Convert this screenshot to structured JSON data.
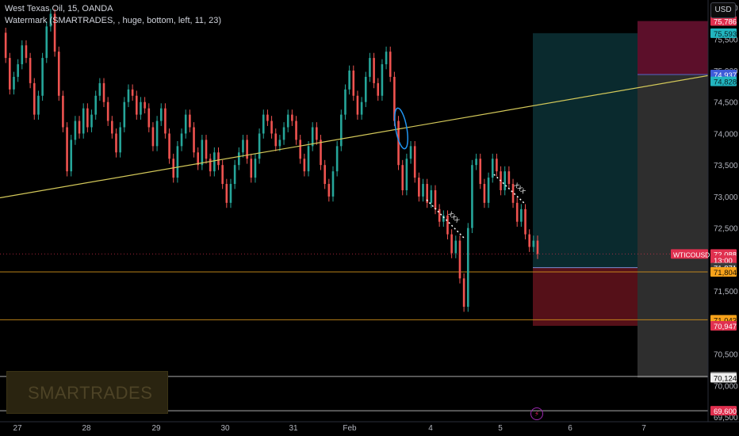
{
  "legend": {
    "symbol_line": "West Texas Oil, 15, OANDA",
    "indicator_line": "Watermark (SMARTRADES, , huge, bottom, left, 11, 23)"
  },
  "watermark": {
    "text": "SMARTRADES"
  },
  "currency_button": "USD",
  "chart_data": {
    "type": "line",
    "title": "West Texas Oil, 15, OANDA",
    "x_tick_labels": [
      "27",
      "28",
      "29",
      "30",
      "31",
      "Feb",
      "4",
      "5",
      "6",
      "7"
    ],
    "y_ticks": [
      {
        "label": "76,000",
        "value": 76.0
      },
      {
        "label": "75,500",
        "value": 75.5
      },
      {
        "label": "75,000",
        "value": 75.0
      },
      {
        "label": "74,500",
        "value": 74.5
      },
      {
        "label": "74,000",
        "value": 74.0
      },
      {
        "label": "73,500",
        "value": 73.5
      },
      {
        "label": "73,000",
        "value": 73.0
      },
      {
        "label": "72,500",
        "value": 72.5
      },
      {
        "label": "71,500",
        "value": 71.5
      },
      {
        "label": "70,500",
        "value": 70.5
      },
      {
        "label": "70,000",
        "value": 70.0
      },
      {
        "label": "69,500",
        "value": 69.5
      }
    ],
    "ylim": [
      69.45,
      76.12
    ],
    "series": [
      {
        "values": [
          75.6,
          75.2,
          74.7,
          74.9,
          75.1,
          75.4,
          75.2,
          74.8,
          74.3,
          74.6,
          75.2,
          75.7,
          75.9,
          75.3,
          74.6,
          74.1,
          73.4,
          73.9,
          74.2,
          74.0,
          74.4,
          74.1,
          74.3,
          74.6,
          74.8,
          74.5,
          74.2,
          74.0,
          73.7,
          74.1,
          74.5,
          74.7,
          74.6,
          74.3,
          74.5,
          74.4,
          74.1,
          73.8,
          74.2,
          74.4,
          74.0,
          73.6,
          73.3,
          73.8,
          74.0,
          74.3,
          74.1,
          73.7,
          73.5,
          73.9,
          73.6,
          73.4,
          73.7,
          73.5,
          73.2,
          72.9,
          73.2,
          73.5,
          73.7,
          73.9,
          73.6,
          73.3,
          73.6,
          74.0,
          74.3,
          74.2,
          74.0,
          73.8,
          73.9,
          74.1,
          74.3,
          74.2,
          73.9,
          73.6,
          73.4,
          73.8,
          74.1,
          73.9,
          73.5,
          73.2,
          73.0,
          73.4,
          73.8,
          74.3,
          74.7,
          75.0,
          74.6,
          74.3,
          74.5,
          74.9,
          75.2,
          74.8,
          74.6,
          75.1,
          75.3,
          74.9,
          74.2,
          73.5,
          73.1,
          73.6,
          73.8,
          73.3,
          73.0,
          73.2,
          72.9,
          73.1,
          72.8,
          72.6,
          72.7,
          72.4,
          72.1,
          72.3,
          71.7,
          71.25,
          72.5,
          73.5,
          73.6,
          73.2,
          72.9,
          73.3,
          73.6,
          73.4,
          73.1,
          73.4,
          73.2,
          72.9,
          72.6,
          72.8,
          72.4,
          72.2,
          72.3,
          72.088
        ],
        "color": "#ef5350"
      }
    ],
    "trendline": {
      "from": 72.98,
      "to": 74.92,
      "color": "#d4c95a"
    },
    "position_tool": {
      "profit_zone": {
        "top": 75.593,
        "bottom": 71.871,
        "color": "#0b2f33"
      },
      "loss_zone": {
        "top": 71.871,
        "bottom": 70.947,
        "color": "#5a1119"
      }
    },
    "future_zone": {
      "target": {
        "top": 75.786,
        "bottom": 74.937,
        "color": "#5c0f2a"
      },
      "stop": {
        "top": 74.937,
        "bottom": 70.124,
        "color": "#2e2e2e"
      }
    },
    "horizontal_lines": [
      {
        "value": 71.804,
        "color": "#d9961c"
      },
      {
        "value": 71.043,
        "color": "#d9961c"
      },
      {
        "value": 70.144,
        "color": "#c8c8c8"
      },
      {
        "value": 69.6,
        "color": "#c8c8c8"
      }
    ],
    "annotations": [
      {
        "text": "XXX",
        "x": 0.628,
        "value": 72.8
      },
      {
        "text": "XXX",
        "x": 0.745,
        "value": 73.5
      }
    ],
    "price_tags": [
      {
        "label": "75,786",
        "value": 75.786,
        "bg": "#e0304f",
        "fg": "#ffffff"
      },
      {
        "label": "75,593",
        "value": 75.593,
        "bg": "#22b5bf",
        "fg": "#062025"
      },
      {
        "label": "74,937",
        "value": 74.937,
        "bg": "#3f5bd8",
        "fg": "#ffffff"
      },
      {
        "label": "74,828",
        "value": 74.828,
        "bg": "#22b5bf",
        "fg": "#062025"
      },
      {
        "label": "72,088",
        "value": 72.088,
        "bg": "#e0304f",
        "fg": "#ffffff"
      },
      {
        "label": "13:00",
        "value": 71.99,
        "bg": "#e0304f",
        "fg": "#ffffff"
      },
      {
        "label": "71,871",
        "value": 71.871,
        "bg": "#3a3a3a",
        "fg": "#ffffff"
      },
      {
        "label": "71,804",
        "value": 71.804,
        "bg": "#f7a21b",
        "fg": "#1a1200"
      },
      {
        "label": "71,043",
        "value": 71.043,
        "bg": "#f7a21b",
        "fg": "#1a1200"
      },
      {
        "label": "70,947",
        "value": 70.947,
        "bg": "#e0304f",
        "fg": "#ffffff"
      },
      {
        "label": "70,144",
        "value": 70.144,
        "bg": "#5e5e5e",
        "fg": "#ffffff"
      },
      {
        "label": "70,124",
        "value": 70.124,
        "bg": "#f0f0f0",
        "fg": "#000000"
      },
      {
        "label": "69,600",
        "value": 69.6,
        "bg": "#e0304f",
        "fg": "#ffffff"
      }
    ],
    "symbol_tag": {
      "label": "WTICOUSD",
      "value": 72.088,
      "bg": "#e0304f"
    }
  }
}
